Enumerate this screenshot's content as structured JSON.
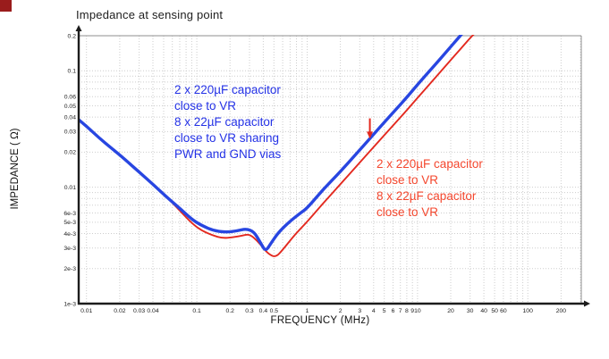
{
  "page": {
    "title": "Impedance at sensing point"
  },
  "colors": {
    "blue_curve": "#2846e1",
    "red_curve": "#e3291f",
    "blue_text": "#2432e6",
    "red_text": "#f4472e",
    "corner_marker": "#9a1c1c",
    "grid": "#cdcdcd",
    "axis": "#1c1c1c"
  },
  "chart_data": {
    "type": "line",
    "title": "Impedance at sensing point",
    "xlabel": "FREQUENCY (MHz)",
    "ylabel": "IMPEDANCE ( Ω)",
    "x_scale": "log",
    "y_scale": "log",
    "xlim": [
      0.0085,
      305
    ],
    "ylim": [
      0.001,
      0.2
    ],
    "grid": "minor-log-dotted",
    "legend": "none",
    "x_ticks": [
      {
        "v": 0.01,
        "label": "0.01"
      },
      {
        "v": 0.02,
        "label": "0.02"
      },
      {
        "v": 0.03,
        "label": "0.03"
      },
      {
        "v": 0.04,
        "label": "0.04"
      },
      {
        "v": 0.1,
        "label": "0.1"
      },
      {
        "v": 0.2,
        "label": "0.2"
      },
      {
        "v": 0.3,
        "label": "0.3"
      },
      {
        "v": 0.4,
        "label": "0.4"
      },
      {
        "v": 0.5,
        "label": "0.5"
      },
      {
        "v": 1,
        "label": "1"
      },
      {
        "v": 2,
        "label": "2"
      },
      {
        "v": 3,
        "label": "3"
      },
      {
        "v": 4,
        "label": "4"
      },
      {
        "v": 5,
        "label": "5"
      },
      {
        "v": 6,
        "label": "6"
      },
      {
        "v": 7,
        "label": "7"
      },
      {
        "v": 8,
        "label": "8"
      },
      {
        "v": 9,
        "label": "9"
      },
      {
        "v": 10,
        "label": "10"
      },
      {
        "v": 20,
        "label": "20"
      },
      {
        "v": 30,
        "label": "30"
      },
      {
        "v": 40,
        "label": "40"
      },
      {
        "v": 50,
        "label": "50"
      },
      {
        "v": 60,
        "label": "60"
      },
      {
        "v": 100,
        "label": "100"
      },
      {
        "v": 200,
        "label": "200"
      }
    ],
    "y_ticks": [
      {
        "v": 0.2,
        "label": "0.2"
      },
      {
        "v": 0.1,
        "label": "0.1"
      },
      {
        "v": 0.06,
        "label": "0.06"
      },
      {
        "v": 0.05,
        "label": "0.05"
      },
      {
        "v": 0.04,
        "label": "0.04"
      },
      {
        "v": 0.03,
        "label": "0.03"
      },
      {
        "v": 0.02,
        "label": "0.02"
      },
      {
        "v": 0.01,
        "label": "0.01"
      },
      {
        "v": 0.006,
        "label": "6e-3"
      },
      {
        "v": 0.005,
        "label": "5e-3"
      },
      {
        "v": 0.004,
        "label": "4e-3"
      },
      {
        "v": 0.003,
        "label": "3e-3"
      },
      {
        "v": 0.002,
        "label": "2e-3"
      },
      {
        "v": 0.001,
        "label": "1e-3"
      }
    ],
    "series": [
      {
        "name": "2x220uF + 8x22uF close to VR",
        "color": "#e3291f",
        "width": 1.9,
        "points": [
          [
            0.0085,
            0.038
          ],
          [
            0.01,
            0.0335
          ],
          [
            0.013,
            0.0265
          ],
          [
            0.017,
            0.0215
          ],
          [
            0.022,
            0.0175
          ],
          [
            0.03,
            0.0135
          ],
          [
            0.04,
            0.0106
          ],
          [
            0.055,
            0.008
          ],
          [
            0.07,
            0.0063
          ],
          [
            0.09,
            0.0049
          ],
          [
            0.11,
            0.00425
          ],
          [
            0.14,
            0.00385
          ],
          [
            0.17,
            0.00365
          ],
          [
            0.21,
            0.0037
          ],
          [
            0.26,
            0.00385
          ],
          [
            0.3,
            0.00395
          ],
          [
            0.35,
            0.0035
          ],
          [
            0.4,
            0.003
          ],
          [
            0.45,
            0.00265
          ],
          [
            0.52,
            0.0025
          ],
          [
            0.6,
            0.0029
          ],
          [
            0.72,
            0.0036
          ],
          [
            0.85,
            0.0043
          ],
          [
            1,
            0.00505
          ],
          [
            1.4,
            0.0073
          ],
          [
            2,
            0.0106
          ],
          [
            3,
            0.0163
          ],
          [
            4,
            0.0221
          ],
          [
            6,
            0.0339
          ],
          [
            8,
            0.0458
          ],
          [
            10,
            0.0585
          ],
          [
            14,
            0.084
          ],
          [
            19,
            0.117
          ],
          [
            25,
            0.157
          ],
          [
            31,
            0.198
          ],
          [
            34,
            0.215
          ]
        ]
      },
      {
        "name": "2x220uF + 8x22uF close to VR sharing PWR and GND vias",
        "color": "#2846e1",
        "width": 3.4,
        "points": [
          [
            0.0085,
            0.038
          ],
          [
            0.01,
            0.0335
          ],
          [
            0.013,
            0.0265
          ],
          [
            0.017,
            0.0215
          ],
          [
            0.022,
            0.0175
          ],
          [
            0.03,
            0.0135
          ],
          [
            0.04,
            0.0106
          ],
          [
            0.055,
            0.008
          ],
          [
            0.07,
            0.0066
          ],
          [
            0.09,
            0.0053
          ],
          [
            0.11,
            0.0047
          ],
          [
            0.14,
            0.00425
          ],
          [
            0.18,
            0.0041
          ],
          [
            0.23,
            0.0042
          ],
          [
            0.28,
            0.0044
          ],
          [
            0.33,
            0.00415
          ],
          [
            0.38,
            0.0033
          ],
          [
            0.42,
            0.0028
          ],
          [
            0.47,
            0.0033
          ],
          [
            0.55,
            0.0041
          ],
          [
            0.7,
            0.0051
          ],
          [
            0.85,
            0.0059
          ],
          [
            1,
            0.0066
          ],
          [
            1.4,
            0.0096
          ],
          [
            2,
            0.0136
          ],
          [
            3,
            0.0209
          ],
          [
            4,
            0.0285
          ],
          [
            6,
            0.0437
          ],
          [
            8,
            0.059
          ],
          [
            10,
            0.0761
          ],
          [
            14,
            0.109
          ],
          [
            19,
            0.152
          ],
          [
            24,
            0.196
          ],
          [
            26,
            0.215
          ]
        ]
      }
    ],
    "arrow": {
      "color": "#e3291f",
      "f": 3.7,
      "z_start": 0.039,
      "z_end": 0.0285
    },
    "annotations": [
      {
        "id": "blue-note",
        "color": "#2432e6",
        "lines": [
          "2 x 220µF capacitor",
          "close to VR",
          "8 x 22µF capacitor",
          "close to VR sharing",
          "PWR and GND vias"
        ]
      },
      {
        "id": "red-note",
        "color": "#f4472e",
        "lines": [
          "2 x 220µF capacitor",
          "close to VR",
          "8 x 22µF capacitor",
          "close to VR"
        ]
      }
    ]
  }
}
